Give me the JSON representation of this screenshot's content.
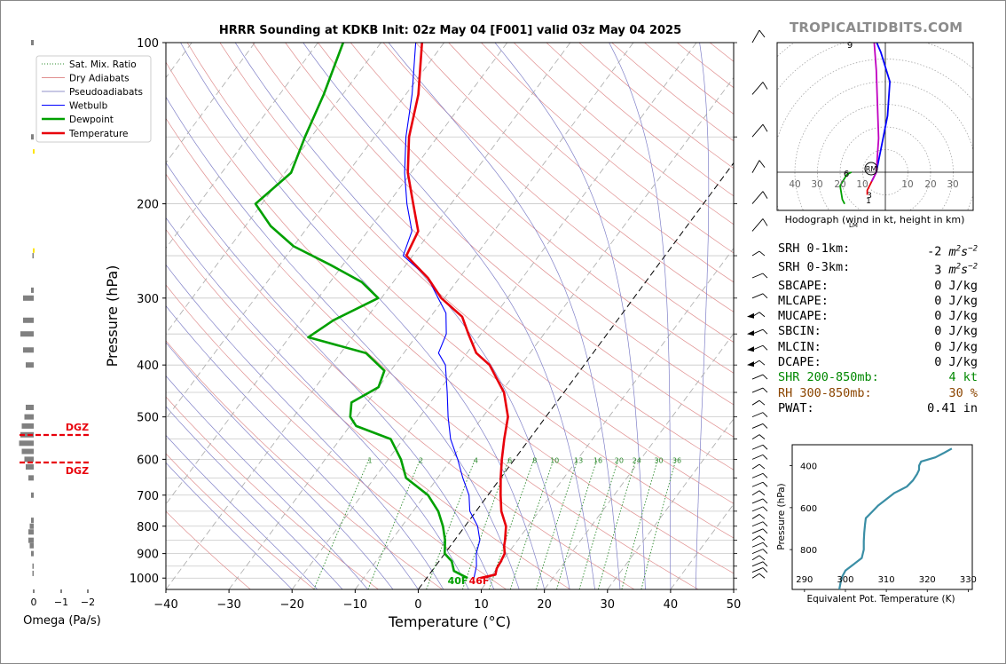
{
  "title": "HRRR Sounding at KDKB Init: 02z May 04 [F001] valid 03z May 04 2025",
  "brand": "TROPICALTIDBITS.COM",
  "skewt": {
    "xlabel": "Temperature (°C)",
    "ylabel": "Pressure (hPa)",
    "pressure_ticks": [
      "100",
      "200",
      "300",
      "400",
      "500",
      "600",
      "700",
      "800",
      "900",
      "1000"
    ],
    "temp_ticks": [
      "−40",
      "−30",
      "−20",
      "−10",
      "0",
      "10",
      "20",
      "30",
      "40",
      "50"
    ],
    "mixing_ratio_labels": [
      "1",
      "2",
      "4",
      "6",
      "8",
      "10",
      "13",
      "16",
      "20",
      "24",
      "30",
      "36"
    ],
    "surface_dewpoint_label": "40F",
    "surface_temperature_label": "46F",
    "colors": {
      "temperature": "#e8000b",
      "dewpoint": "#00a000",
      "wetbulb": "#0000ff",
      "mixratio": "#2e8b2e",
      "dry": "#e09090",
      "moist": "#8080c8"
    }
  },
  "legend": {
    "items": [
      {
        "label": "Sat. Mix. Ratio"
      },
      {
        "label": "Dry Adiabats"
      },
      {
        "label": "Pseudoadiabats"
      },
      {
        "label": "Wetbulb"
      },
      {
        "label": "Dewpoint"
      },
      {
        "label": "Temperature"
      }
    ]
  },
  "omega": {
    "xlabel": "Omega (Pa/s)",
    "ticks": [
      "0",
      "−1",
      "−2"
    ],
    "dgz_label_top": "DGZ",
    "dgz_label_bottom": "DGZ"
  },
  "hodograph": {
    "caption": "Hodograph (wind in kt, height in km)",
    "ring_labels": [
      "40",
      "30",
      "20",
      "10",
      "10",
      "20",
      "30"
    ],
    "height_labels": [
      "9",
      "6",
      "3",
      "1"
    ],
    "rm_label": "RM",
    "lm_label": "LM"
  },
  "parameters": [
    {
      "name": "SRH 0-1km:",
      "value": "-2",
      "unit_base": "m",
      "unit_exp": "2",
      "unit_tail": "s",
      "unit_exp2": "−2",
      "color": "#000000"
    },
    {
      "name": "SRH 0-3km:",
      "value": "3",
      "unit_base": "m",
      "unit_exp": "2",
      "unit_tail": "s",
      "unit_exp2": "−2",
      "color": "#000000"
    },
    {
      "name": "SBCAPE:",
      "value": "0 J/kg",
      "color": "#000000"
    },
    {
      "name": "MLCAPE:",
      "value": "0 J/kg",
      "color": "#000000"
    },
    {
      "name": "MUCAPE:",
      "value": "0 J/kg",
      "color": "#000000"
    },
    {
      "name": "SBCIN:",
      "value": "0 J/kg",
      "color": "#000000"
    },
    {
      "name": "MLCIN:",
      "value": "0 J/kg",
      "color": "#000000"
    },
    {
      "name": "DCAPE:",
      "value": "0 J/kg",
      "color": "#000000"
    },
    {
      "name": "SHR 200-850mb:",
      "value": "4 kt",
      "color": "#008800"
    },
    {
      "name": "RH 300-850mb:",
      "value": "30 %",
      "color": "#8b4500"
    },
    {
      "name": "PWAT:",
      "value": "0.41 in",
      "color": "#000000"
    }
  ],
  "theta_e": {
    "xlabel": "Equivalent Pot. Temperature (K)",
    "ylabel": "Pressure (hPa)",
    "xticks": [
      "290",
      "300",
      "310",
      "320",
      "330"
    ],
    "yticks": [
      "400",
      "600",
      "800"
    ]
  },
  "chart_data": [
    {
      "type": "line",
      "title": "HRRR Sounding at KDKB Init: 02z May 04 [F001] valid 03z May 04 2025",
      "xlabel": "Temperature (°C)",
      "ylabel": "Pressure (hPa)",
      "xlim": [
        -40,
        50
      ],
      "ylim": [
        1050,
        100
      ],
      "yscale": "log",
      "skew": "skew-T",
      "legend_position": "top-left",
      "series": [
        {
          "name": "Temperature",
          "color": "#e8000b",
          "points": [
            [
              1000,
              8.5
            ],
            [
              985,
              10.5
            ],
            [
              960,
              10.0
            ],
            [
              930,
              9.8
            ],
            [
              900,
              9.5
            ],
            [
              870,
              8.5
            ],
            [
              850,
              8.0
            ],
            [
              800,
              6.5
            ],
            [
              750,
              4.0
            ],
            [
              700,
              2.0
            ],
            [
              650,
              0.0
            ],
            [
              600,
              -2.0
            ],
            [
              550,
              -4.0
            ],
            [
              500,
              -6.0
            ],
            [
              450,
              -9.5
            ],
            [
              400,
              -15.0
            ],
            [
              380,
              -18.5
            ],
            [
              350,
              -22.0
            ],
            [
              325,
              -25.0
            ],
            [
              300,
              -30.5
            ],
            [
              275,
              -35.0
            ],
            [
              250,
              -41.0
            ],
            [
              225,
              -42.0
            ],
            [
              200,
              -46.0
            ],
            [
              175,
              -50.5
            ],
            [
              150,
              -54.5
            ],
            [
              125,
              -58.0
            ],
            [
              100,
              -63.5
            ]
          ]
        },
        {
          "name": "Dewpoint",
          "color": "#00a000",
          "points": [
            [
              1000,
              6.5
            ],
            [
              970,
              3.5
            ],
            [
              930,
              2.0
            ],
            [
              900,
              0.0
            ],
            [
              850,
              -1.5
            ],
            [
              800,
              -3.5
            ],
            [
              750,
              -6.0
            ],
            [
              700,
              -9.5
            ],
            [
              650,
              -15.0
            ],
            [
              600,
              -18.0
            ],
            [
              550,
              -22.0
            ],
            [
              520,
              -29.0
            ],
            [
              500,
              -31.0
            ],
            [
              470,
              -32.5
            ],
            [
              440,
              -30.0
            ],
            [
              410,
              -31.0
            ],
            [
              380,
              -36.0
            ],
            [
              355,
              -47.0
            ],
            [
              330,
              -45.0
            ],
            [
              300,
              -40.5
            ],
            [
              280,
              -45.0
            ],
            [
              260,
              -52.0
            ],
            [
              240,
              -60.0
            ],
            [
              220,
              -66.0
            ],
            [
              200,
              -71.0
            ],
            [
              175,
              -69.0
            ],
            [
              150,
              -71.0
            ],
            [
              125,
              -73.0
            ],
            [
              100,
              -76.0
            ]
          ]
        },
        {
          "name": "Wetbulb",
          "color": "#0000ff",
          "points": [
            [
              1000,
              7.5
            ],
            [
              950,
              6.5
            ],
            [
              900,
              5.0
            ],
            [
              850,
              4.0
            ],
            [
              800,
              2.0
            ],
            [
              750,
              -1.0
            ],
            [
              700,
              -3.0
            ],
            [
              650,
              -6.0
            ],
            [
              600,
              -9.0
            ],
            [
              550,
              -12.5
            ],
            [
              500,
              -15.5
            ],
            [
              450,
              -18.5
            ],
            [
              400,
              -22.0
            ],
            [
              380,
              -24.5
            ],
            [
              350,
              -25.5
            ],
            [
              320,
              -28.0
            ],
            [
              300,
              -31.0
            ],
            [
              275,
              -35.0
            ],
            [
              250,
              -41.5
            ],
            [
              225,
              -43.0
            ],
            [
              200,
              -47.0
            ],
            [
              175,
              -51.0
            ],
            [
              150,
              -55.0
            ],
            [
              125,
              -59.0
            ],
            [
              100,
              -64.5
            ]
          ]
        }
      ]
    },
    {
      "type": "line",
      "title": "",
      "xlabel": "Equivalent Pot. Temperature (K)",
      "ylabel": "Pressure (hPa)",
      "xlim": [
        287,
        331
      ],
      "ylim": [
        990,
        300
      ],
      "series": [
        {
          "points": [
            [
              990,
              298.5
            ],
            [
              960,
              298.8
            ],
            [
              930,
              299.2
            ],
            [
              900,
              300.0
            ],
            [
              870,
              302.0
            ],
            [
              840,
              304.0
            ],
            [
              800,
              304.5
            ],
            [
              760,
              304.5
            ],
            [
              720,
              304.6
            ],
            [
              680,
              304.8
            ],
            [
              650,
              305.0
            ],
            [
              620,
              306.5
            ],
            [
              590,
              308.0
            ],
            [
              560,
              310.0
            ],
            [
              530,
              312.0
            ],
            [
              500,
              315.0
            ],
            [
              470,
              316.5
            ],
            [
              440,
              317.5
            ],
            [
              420,
              318.0
            ],
            [
              400,
              318.0
            ],
            [
              380,
              318.5
            ],
            [
              360,
              322.0
            ],
            [
              340,
              324.0
            ],
            [
              318,
              326.0
            ]
          ]
        }
      ]
    }
  ]
}
